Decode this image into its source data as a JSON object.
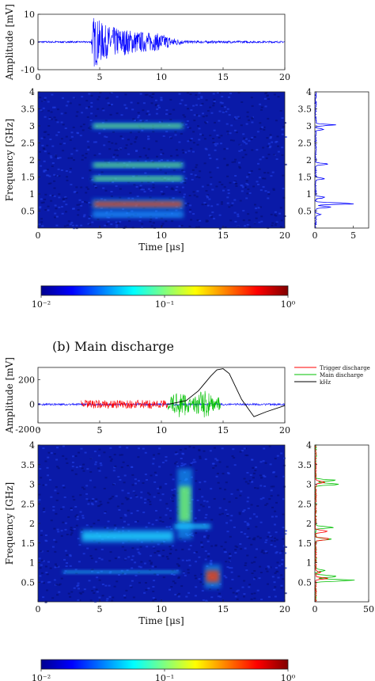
{
  "panel_b": {
    "caption": "(b) Main discharge"
  },
  "chart_data": [
    {
      "type": "line",
      "ylabel": "Amplitude [mV]",
      "xlim": [
        0,
        20
      ],
      "ylim": [
        -10,
        10
      ],
      "xticks": [
        "0",
        "5",
        "10",
        "15",
        "20"
      ],
      "yticks": [
        "-10",
        "0",
        "10"
      ],
      "series": [
        {
          "color": "#0000ff",
          "envelope": [
            {
              "x": 0,
              "amp": 0.3
            },
            {
              "x": 4.3,
              "amp": 0.3
            },
            {
              "x": 4.5,
              "amp": 9.5
            },
            {
              "x": 5.5,
              "amp": 6
            },
            {
              "x": 8,
              "amp": 4
            },
            {
              "x": 10,
              "amp": 3
            },
            {
              "x": 11,
              "amp": 1.5
            },
            {
              "x": 12,
              "amp": 0.5
            },
            {
              "x": 20,
              "amp": 0.3
            }
          ]
        }
      ]
    },
    {
      "type": "heatmap",
      "xlabel": "Time [μs]",
      "ylabel": "Frequency [GHz]",
      "xlim": [
        0,
        20
      ],
      "ylim": [
        0,
        4
      ],
      "xticks": [
        "0",
        "5",
        "10",
        "15",
        "20"
      ],
      "yticks": [
        "0.5",
        "1",
        "1.5",
        "2",
        "2.5",
        "3",
        "3.5",
        "4"
      ],
      "features": [
        {
          "t": [
            4.4,
            11.8
          ],
          "f": [
            0.55,
            0.85
          ],
          "level": 0.85
        },
        {
          "t": [
            4.4,
            11.8
          ],
          "f": [
            1.35,
            1.55
          ],
          "level": 0.55
        },
        {
          "t": [
            4.4,
            11.8
          ],
          "f": [
            1.75,
            1.95
          ],
          "level": 0.5
        },
        {
          "t": [
            4.4,
            11.8
          ],
          "f": [
            2.9,
            3.1
          ],
          "level": 0.5
        },
        {
          "t": [
            4.4,
            11.8
          ],
          "f": [
            0.3,
            0.5
          ],
          "level": 0.3
        }
      ]
    },
    {
      "type": "line",
      "xlim": [
        0,
        7
      ],
      "ylim": [
        0,
        4
      ],
      "xticks": [
        "0",
        "5"
      ],
      "yticks": [
        "0.5",
        "1",
        "1.5",
        "2",
        "2.5",
        "3",
        "3.5",
        "4"
      ],
      "series": [
        {
          "color": "#0000ff",
          "peaks": [
            {
              "f": 0.72,
              "v": 6.5
            },
            {
              "f": 0.62,
              "v": 3.0
            },
            {
              "f": 0.9,
              "v": 1.5
            },
            {
              "f": 1.45,
              "v": 1.2
            },
            {
              "f": 1.88,
              "v": 1.8
            },
            {
              "f": 2.9,
              "v": 1.5
            },
            {
              "f": 3.03,
              "v": 2.8
            },
            {
              "f": 0.4,
              "v": 0.8
            }
          ]
        }
      ]
    },
    {
      "type": "heatmap_colorbar",
      "scale": "log",
      "range": [
        0.01,
        1
      ],
      "tick_labels": [
        "10⁻²",
        "10⁻¹",
        "10⁰"
      ]
    },
    {
      "type": "line",
      "ylabel": "Amplitude [mV]",
      "xlim": [
        0,
        20
      ],
      "ylim": [
        -150,
        300
      ],
      "xticks": [
        "0",
        "5",
        "10",
        "15",
        "20"
      ],
      "yticks": [
        "-200",
        "0",
        "200"
      ],
      "legend": {
        "position": "right",
        "entries": [
          {
            "label": "Trigger discharge",
            "color": "#ff0000"
          },
          {
            "label": "Main discharge",
            "color": "#00c000"
          },
          {
            "label": "kHz",
            "color": "#000000"
          }
        ]
      },
      "series": [
        {
          "name": "Trigger discharge",
          "color": "#ff0000",
          "t": [
            3.5,
            10.5
          ],
          "amp": 35
        },
        {
          "name": "Main discharge",
          "color": "#00c000",
          "t": [
            10.5,
            14.8
          ],
          "amp": 110
        },
        {
          "color": "#0000ff",
          "t": [
            0,
            20
          ],
          "amp": 8
        },
        {
          "name": "kHz",
          "color": "#000000",
          "x": [
            10.5,
            12,
            13,
            14,
            14.5,
            15,
            15.5,
            16.5,
            17.5,
            18.5,
            20
          ],
          "y": [
            0,
            30,
            110,
            230,
            280,
            290,
            250,
            40,
            -100,
            -60,
            -10
          ]
        }
      ]
    },
    {
      "type": "heatmap",
      "xlabel": "Time [μs]",
      "ylabel": "Frequency [GHz]",
      "xlim": [
        0,
        20
      ],
      "ylim": [
        0,
        4
      ],
      "xticks": [
        "0",
        "5",
        "10",
        "15",
        "20"
      ],
      "yticks": [
        "0.5",
        "1",
        "1.5",
        "2",
        "2.5",
        "3",
        "3.5",
        "4"
      ],
      "features": [
        {
          "t": [
            3.5,
            11
          ],
          "f": [
            1.5,
            1.85
          ],
          "level": 0.45
        },
        {
          "t": [
            11.3,
            12.5
          ],
          "f": [
            1.6,
            3.4
          ],
          "level": 0.55
        },
        {
          "t": [
            11,
            14
          ],
          "f": [
            1.85,
            2.0
          ],
          "level": 0.45
        },
        {
          "t": [
            2.0,
            11.5
          ],
          "f": [
            0.72,
            0.8
          ],
          "level": 0.4
        },
        {
          "t": [
            13.5,
            14.8
          ],
          "f": [
            0.35,
            0.95
          ],
          "level": 0.9
        }
      ]
    },
    {
      "type": "line",
      "xlim": [
        0,
        50
      ],
      "ylim": [
        0,
        4
      ],
      "xticks": [
        "0",
        "50"
      ],
      "yticks": [
        "0.5",
        "1",
        "1.5",
        "2",
        "2.5",
        "3",
        "3.5",
        "4"
      ],
      "series": [
        {
          "color": "#00c000",
          "peaks": [
            {
              "f": 0.55,
              "v": 45
            },
            {
              "f": 0.65,
              "v": 30
            },
            {
              "f": 0.8,
              "v": 10
            },
            {
              "f": 1.6,
              "v": 15
            },
            {
              "f": 1.9,
              "v": 18
            },
            {
              "f": 3.0,
              "v": 25
            },
            {
              "f": 3.1,
              "v": 20
            }
          ]
        },
        {
          "color": "#ff0000",
          "peaks": [
            {
              "f": 0.6,
              "v": 12
            },
            {
              "f": 1.6,
              "v": 20
            },
            {
              "f": 1.8,
              "v": 16
            },
            {
              "f": 3.05,
              "v": 10
            },
            {
              "f": 0.75,
              "v": 6
            }
          ]
        }
      ]
    },
    {
      "type": "heatmap_colorbar",
      "scale": "log",
      "range": [
        0.01,
        1
      ],
      "tick_labels": [
        "10⁻²",
        "10⁻¹",
        "10⁰"
      ]
    }
  ]
}
